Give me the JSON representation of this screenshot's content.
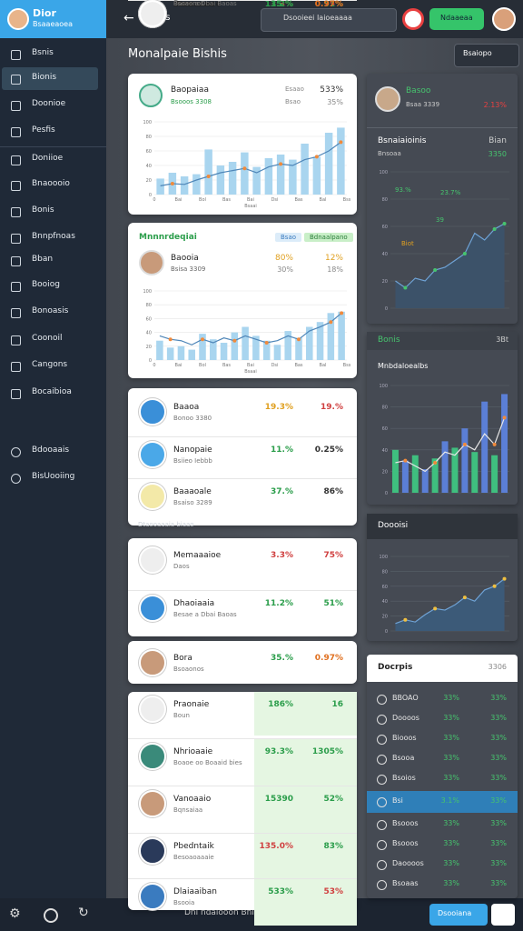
{
  "brand": {
    "name": "Dior",
    "subtitle": "Bsaaeaoea"
  },
  "topbar": {
    "title": "Bofis",
    "search": "Dsooieei Iaioeaaaa",
    "button": "Ndaaeaa"
  },
  "sidebar": {
    "items": [
      "Bsnis",
      "Bionis",
      "Doonioe",
      "Pesfis",
      "Doniioe",
      "Bnaoooio",
      "Bonis",
      "Bnnpfnoas",
      "Bban",
      "Booiog",
      "Bonoasis",
      "Coonoil",
      "Cangons",
      "Bocaibioa"
    ],
    "active": 1,
    "bottom": [
      "Bdooaais",
      "BisUooiing"
    ]
  },
  "page": {
    "title": "Monalpaie Bishis",
    "dropdown": "Bsaiopo"
  },
  "card_a": {
    "name": "Baopaiaa",
    "sub": "Bsooos 3308",
    "label1": "Esaao",
    "value1": "533%",
    "label2": "Bsao",
    "value2": "35%",
    "chart": {
      "ylim": [
        0,
        100
      ],
      "yticks": [
        0,
        20,
        40,
        60,
        80,
        100
      ],
      "bars": [
        22,
        30,
        25,
        28,
        62,
        40,
        45,
        58,
        38,
        50,
        55,
        48,
        70,
        52,
        85,
        92
      ],
      "line": [
        12,
        15,
        14,
        20,
        25,
        30,
        33,
        36,
        30,
        38,
        42,
        40,
        48,
        52,
        60,
        72
      ],
      "bar_color": "#a9d5ef",
      "line_color": "#4f86b8",
      "marker_color": "#f08a3c",
      "xlabels": [
        "0",
        "Bai",
        "Bol",
        "Bas",
        "Bai",
        "Dsi",
        "Bas",
        "Bal",
        "Bss"
      ],
      "xtitle": "Bsaai"
    }
  },
  "card_b": {
    "title": "Mnnnrdeqiai",
    "chip1": "Bsao",
    "chip2": "Bdnaalpano",
    "name": "Baooia",
    "sub": "Bsisa 3309",
    "value1": "80%",
    "value2": "12%",
    "value3": "30%",
    "value4": "18%",
    "chart": {
      "ylim": [
        0,
        100
      ],
      "yticks": [
        0,
        20,
        40,
        60,
        80,
        100
      ],
      "bars": [
        28,
        18,
        20,
        15,
        38,
        30,
        25,
        40,
        48,
        35,
        28,
        22,
        42,
        32,
        48,
        55,
        68,
        70
      ],
      "line": [
        35,
        30,
        28,
        22,
        30,
        25,
        32,
        28,
        35,
        30,
        25,
        28,
        35,
        30,
        42,
        48,
        55,
        68
      ],
      "bar_color": "#a9d5ef",
      "line_color": "#4f86b8",
      "marker_color": "#f08a3c",
      "xlabels": [
        "0",
        "Bai",
        "Bol",
        "Bas",
        "Bai",
        "Dsi",
        "Bas",
        "Bal",
        "Bss"
      ],
      "xtitle": "Bsaai"
    }
  },
  "card_c": {
    "rows": [
      {
        "name": "Baaoa",
        "sub": "Bonoo 3380",
        "v1": "19.3%",
        "v2": "19.%",
        "c1": "#e0a020",
        "c2": "#d04040"
      },
      {
        "name": "Nanopaie",
        "sub": "Bsiieo Iebbb",
        "v1": "11.%",
        "v2": "0.25%",
        "c1": "#2a9d4a",
        "c2": "#333333"
      },
      {
        "name": "Baaaoale",
        "sub": "Bsaiso 3289",
        "v1": "37.%",
        "v2": "86%",
        "c1": "#2a9d4a",
        "c2": "#333333"
      }
    ]
  },
  "section_label": "Dtaooaaaia biaao",
  "card_d": {
    "rows": [
      {
        "name": "Memaaaioe",
        "sub": "Daos",
        "v1": "3.3%",
        "v2": "75%",
        "c1": "#d04040",
        "c2": "#d04040"
      },
      {
        "name": "Dhaoiaaia",
        "sub": "Besae a Dbai Baoas",
        "v1": "11.2%",
        "v2": "51%",
        "c1": "#2a9d4a",
        "c2": "#2a9d4a"
      },
      {
        "name": "Bora",
        "sub": "Bsoaonos",
        "v1": "35.%",
        "v2": "0.97%",
        "c1": "#2a9d4a",
        "c2": "#e07020"
      }
    ]
  },
  "card_e": {
    "rows": [
      {
        "name": "Praonaie",
        "sub": "Boun",
        "v1": "186%",
        "v2": "16",
        "c1": "#2a9d4a",
        "c2": "#2a9d4a"
      },
      {
        "name": "Nhrioaaie",
        "sub": "Boaoe oo Boaaid bies",
        "v1": "93.3%",
        "v2": "1305%",
        "c1": "#2a9d4a",
        "c2": "#2a9d4a"
      },
      {
        "name": "Vanoaaio",
        "sub": "Bqnsaiaa",
        "v1": "15390",
        "v2": "52%",
        "c1": "#2a9d4a",
        "c2": "#2a9d4a"
      },
      {
        "name": "Pbedntaik",
        "sub": "Besoaoaaaie",
        "v1": "135.0%",
        "v2": "83%",
        "c1": "#d04040",
        "c2": "#2a9d4a"
      },
      {
        "name": "Dlaiaaiban",
        "sub": "Bsooia",
        "v1": "533%",
        "v2": "53%",
        "c1": "#2a9d4a",
        "c2": "#d04040"
      }
    ]
  },
  "panel_1": {
    "name": "Basoo",
    "sub": "Bsaa 3339",
    "value": "2.13%",
    "title": "Bsnaiaioinis",
    "label": "Bian",
    "sub2": "Bnsoaa",
    "value2": "3350",
    "annotations": [
      "93.%",
      "23.7%",
      "Biot",
      "39"
    ],
    "chart": {
      "ylim": [
        0,
        100
      ],
      "yticks": [
        0,
        20,
        40,
        60,
        80,
        100
      ],
      "line": [
        20,
        15,
        22,
        20,
        28,
        30,
        35,
        40,
        55,
        50,
        58,
        62
      ],
      "line_color": "#6fa3d6",
      "area_color": "#3c5269",
      "marker_color": "#46c46e"
    }
  },
  "panel_2": {
    "title": "Bonis",
    "control": "3Bt",
    "subtitle": "Mnbdaloealbs",
    "chart": {
      "ylim": [
        0,
        100
      ],
      "yticks": [
        0,
        20,
        40,
        60,
        80,
        100
      ],
      "bars": [
        40,
        30,
        35,
        22,
        32,
        48,
        42,
        60,
        38,
        85,
        35,
        92
      ],
      "line": [
        28,
        30,
        25,
        20,
        28,
        38,
        35,
        45,
        40,
        55,
        45,
        70
      ],
      "bar_colors": [
        "#3fbf7f",
        "#5b7fd6"
      ],
      "line_color": "#e8e8e8",
      "marker_color": "#f08a3c"
    }
  },
  "panel_3": {
    "title": "Doooisi",
    "chart": {
      "ylim": [
        0,
        100
      ],
      "yticks": [
        0,
        20,
        40,
        60,
        80,
        100
      ],
      "line": [
        10,
        15,
        12,
        22,
        30,
        28,
        35,
        45,
        40,
        55,
        60,
        70
      ],
      "line_color": "#6fa3d6",
      "area_color": "#3c5a78",
      "marker_color": "#f0c040"
    }
  },
  "panel_4": {
    "title": "Docrpis",
    "value": "3306",
    "rows": [
      {
        "name": "BBOAO",
        "v1": "33%",
        "v2": "33%"
      },
      {
        "name": "Doooos",
        "v1": "33%",
        "v2": "33%"
      },
      {
        "name": "Biooos",
        "v1": "33%",
        "v2": "33%"
      },
      {
        "name": "Bsooa",
        "v1": "33%",
        "v2": "33%"
      },
      {
        "name": "Bsoios",
        "v1": "33%",
        "v2": "33%"
      },
      {
        "name": "Bsi",
        "v1": "3.1%",
        "v2": "33%"
      },
      {
        "name": "Bsooos",
        "v1": "33%",
        "v2": "33%"
      },
      {
        "name": "Bsooos",
        "v1": "33%",
        "v2": "33%"
      },
      {
        "name": "Daoooos",
        "v1": "33%",
        "v2": "33%"
      },
      {
        "name": "Bsoaas",
        "v1": "33%",
        "v2": "33%"
      }
    ],
    "highlight": 5
  },
  "footer": {
    "text": "Dnl ndaiooon Bnia Bikhiajaon",
    "button": "Dsooiana"
  }
}
